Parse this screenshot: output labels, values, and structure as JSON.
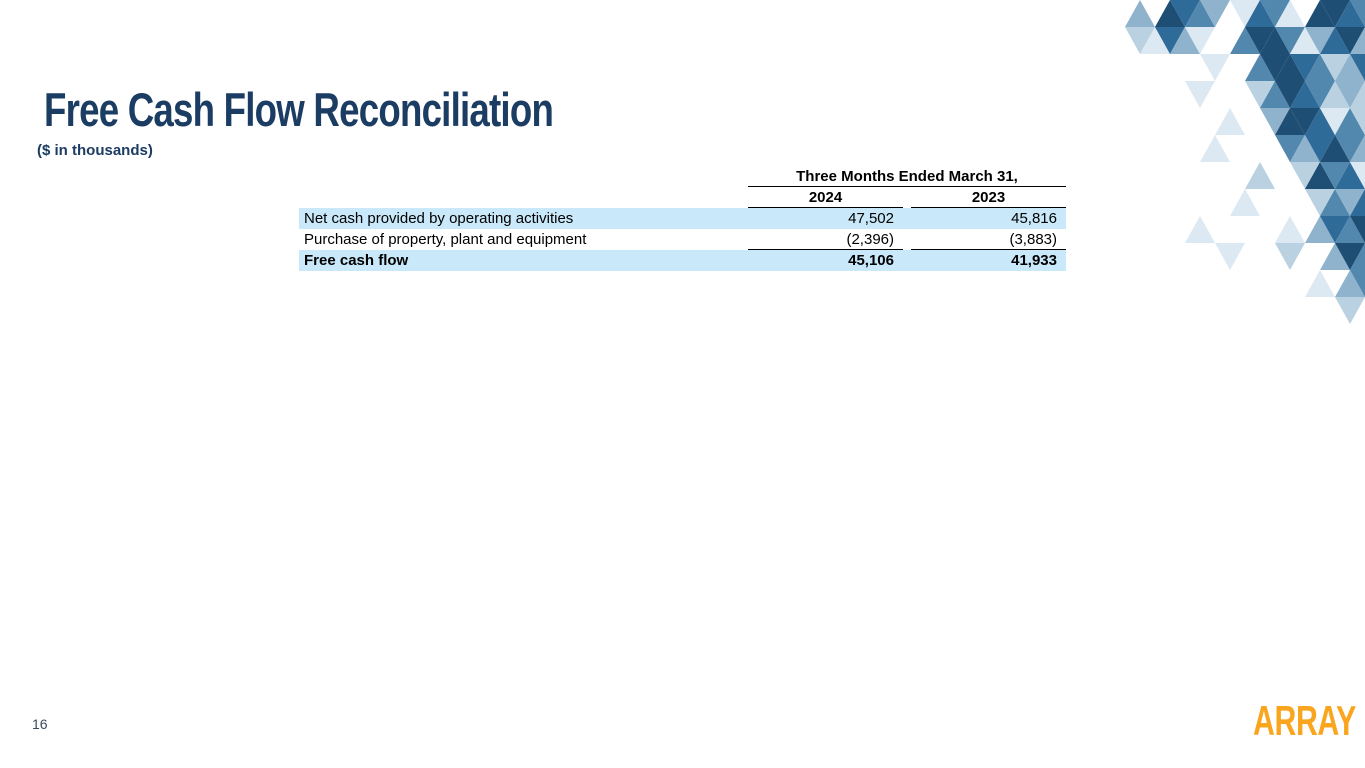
{
  "slide": {
    "title": "Free Cash Flow Reconciliation",
    "subtitle": "($ in thousands)",
    "page_number": "16",
    "logo_text": "ARRAY"
  },
  "table": {
    "group_header": "Three Months Ended March 31,",
    "columns": [
      "2024",
      "2023"
    ],
    "rows": [
      {
        "label": "Net cash provided by operating activities",
        "values": [
          "47,502",
          "45,816"
        ],
        "bold": false,
        "shaded": true,
        "underline_values": false
      },
      {
        "label": "Purchase of property, plant and equipment",
        "values": [
          "(2,396)",
          "(3,883)"
        ],
        "bold": false,
        "shaded": false,
        "underline_values": true
      },
      {
        "label": "Free cash flow",
        "values": [
          "45,106",
          "41,933"
        ],
        "bold": true,
        "shaded": true,
        "underline_values": false
      }
    ]
  },
  "colors": {
    "title_navy": "#1B3C63",
    "table_row_shade": "#C9E8F9",
    "rule_black": "#000000",
    "logo_orange": "#F9A51E",
    "page_number_gray": "#3C4A5C",
    "triangle_palette": [
      "#1E4E74",
      "#2F6B99",
      "#5388AE",
      "#8FB3CC",
      "#BAD1E1",
      "#DDE9F2"
    ]
  }
}
